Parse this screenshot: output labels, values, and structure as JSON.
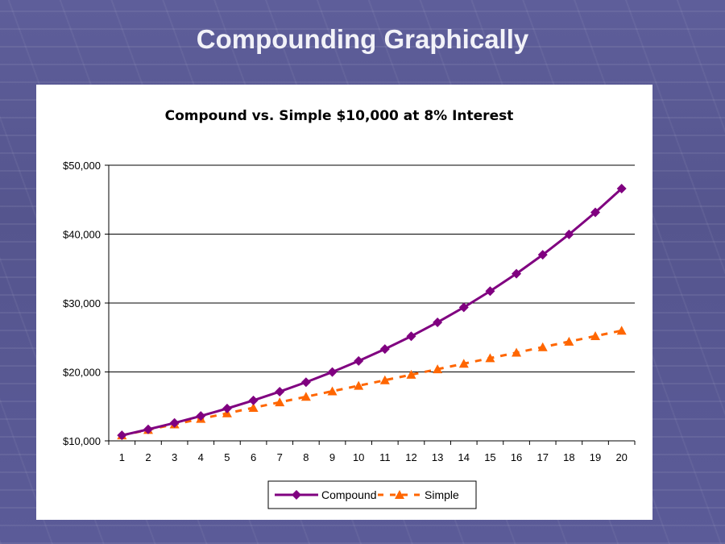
{
  "slide": {
    "title": "Compounding Graphically"
  },
  "chart_data": {
    "type": "line",
    "title": "Compound vs. Simple $10,000 at 8% Interest",
    "categories": [
      "1",
      "2",
      "3",
      "4",
      "5",
      "6",
      "7",
      "8",
      "9",
      "10",
      "11",
      "12",
      "13",
      "14",
      "15",
      "16",
      "17",
      "18",
      "19",
      "20"
    ],
    "ylim": [
      10000,
      50000
    ],
    "yticks": [
      "$10,000",
      "$20,000",
      "$30,000",
      "$40,000",
      "$50,000"
    ],
    "grid": true,
    "legend": "bottom",
    "series": [
      {
        "name": "Compound",
        "color": "#800080",
        "marker": "diamond",
        "line": "solid",
        "values": [
          10800,
          11664,
          12597,
          13605,
          14693,
          15869,
          17138,
          18509,
          19990,
          21589,
          23316,
          25182,
          27196,
          29372,
          31722,
          34259,
          37000,
          39960,
          43157,
          46610
        ]
      },
      {
        "name": "Simple",
        "color": "#ff6600",
        "marker": "triangle",
        "line": "dashed",
        "values": [
          10800,
          11600,
          12400,
          13200,
          14000,
          14800,
          15600,
          16400,
          17200,
          18000,
          18800,
          19600,
          20400,
          21200,
          22000,
          22800,
          23600,
          24400,
          25200,
          26000
        ]
      }
    ]
  }
}
